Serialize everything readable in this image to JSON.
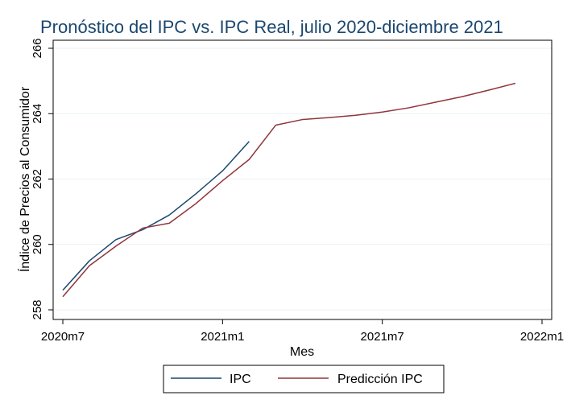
{
  "chart_data": {
    "type": "line",
    "title": "Pronóstico del IPC vs. IPC Real, julio 2020-diciembre 2021",
    "xlabel": "Mes",
    "ylabel": "Índice de Precios al Consumidor",
    "x_tick_labels": [
      "2020m7",
      "2021m1",
      "2021m7",
      "2022m1"
    ],
    "y_tick_labels": [
      "258",
      "260",
      "262",
      "264",
      "266"
    ],
    "ylim": [
      258,
      266
    ],
    "xlim": [
      "2020m7",
      "2022m1"
    ],
    "grid": true,
    "legend_position": "bottom",
    "series": [
      {
        "name": "IPC",
        "color": "#1a476f",
        "x": [
          "2020m7",
          "2020m8",
          "2020m9",
          "2020m10",
          "2020m11",
          "2020m12",
          "2021m1",
          "2021m2"
        ],
        "values": [
          258.6,
          259.5,
          260.15,
          260.45,
          260.9,
          261.55,
          262.25,
          263.15
        ]
      },
      {
        "name": "Predicción IPC",
        "color": "#90353b",
        "x": [
          "2020m7",
          "2020m8",
          "2020m9",
          "2020m10",
          "2020m11",
          "2020m12",
          "2021m1",
          "2021m2",
          "2021m3",
          "2021m4",
          "2021m5",
          "2021m6",
          "2021m7",
          "2021m8",
          "2021m9",
          "2021m10",
          "2021m11",
          "2021m12"
        ],
        "values": [
          258.4,
          259.35,
          259.95,
          260.5,
          260.65,
          261.25,
          261.95,
          262.6,
          263.65,
          263.82,
          263.88,
          263.95,
          264.05,
          264.18,
          264.35,
          264.52,
          264.72,
          264.93
        ]
      }
    ]
  }
}
